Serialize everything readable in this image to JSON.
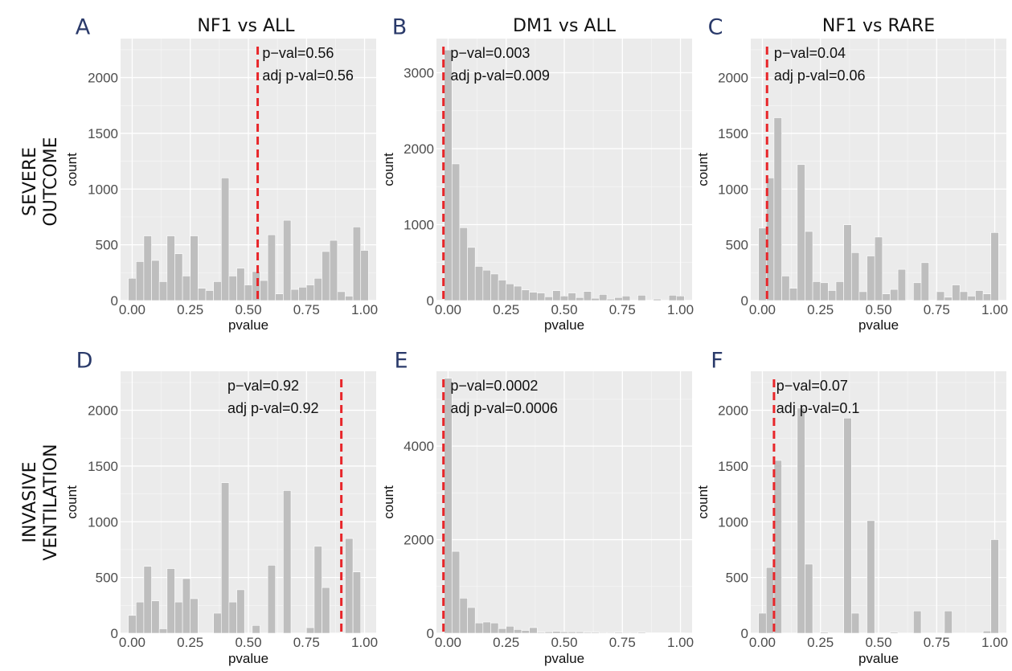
{
  "row_labels": [
    [
      "SEVERE",
      "OUTCOME"
    ],
    [
      "INVASIVE",
      "VENTILATION"
    ]
  ],
  "chart_data": [
    {
      "type": "bar",
      "panel": "A",
      "title": "NF1 vs ALL",
      "xlabel": "pvalue",
      "ylabel": "count",
      "xlim": [
        -0.05,
        1.05
      ],
      "ylim": [
        0,
        2350
      ],
      "xticks": [
        0,
        0.25,
        0.5,
        0.75,
        1
      ],
      "xticklabels": [
        "0.00",
        "0.25",
        "0.50",
        "0.75",
        "1.00"
      ],
      "yticks": [
        0,
        500,
        1000,
        1500,
        2000
      ],
      "bin_width": 0.0333,
      "x": [
        0,
        0.0333,
        0.0667,
        0.1,
        0.1333,
        0.1667,
        0.2,
        0.2333,
        0.2667,
        0.3,
        0.3333,
        0.3667,
        0.4,
        0.4333,
        0.4667,
        0.5,
        0.5333,
        0.5667,
        0.6,
        0.6333,
        0.6667,
        0.7,
        0.7333,
        0.7667,
        0.8,
        0.8333,
        0.8667,
        0.9,
        0.9333,
        0.9667,
        1
      ],
      "values": [
        200,
        350,
        580,
        360,
        170,
        580,
        420,
        220,
        580,
        110,
        90,
        170,
        1100,
        220,
        290,
        140,
        260,
        180,
        590,
        60,
        720,
        100,
        120,
        140,
        200,
        440,
        540,
        80,
        40,
        660,
        450
      ],
      "marker": {
        "x": 0.54
      },
      "annotations": [
        "p−val=0.56",
        "adj p-val=0.56"
      ],
      "anno_x": 0.56
    },
    {
      "type": "bar",
      "panel": "B",
      "title": "DM1 vs ALL",
      "xlabel": "pvalue",
      "ylabel": "count",
      "xlim": [
        -0.05,
        1.05
      ],
      "ylim": [
        0,
        3450
      ],
      "xticks": [
        0,
        0.25,
        0.5,
        0.75,
        1
      ],
      "xticklabels": [
        "0.00",
        "0.25",
        "0.50",
        "0.75",
        "1.00"
      ],
      "yticks": [
        0,
        1000,
        2000,
        3000
      ],
      "bin_width": 0.0333,
      "x": [
        0,
        0.0333,
        0.0667,
        0.1,
        0.1333,
        0.1667,
        0.2,
        0.2333,
        0.2667,
        0.3,
        0.3333,
        0.3667,
        0.4,
        0.4333,
        0.4667,
        0.5,
        0.5333,
        0.5667,
        0.6,
        0.6333,
        0.6667,
        0.7,
        0.7333,
        0.7667,
        0.8,
        0.8333,
        0.8667,
        0.9,
        0.9333,
        0.9667,
        1
      ],
      "values": [
        3300,
        1800,
        960,
        700,
        450,
        400,
        350,
        270,
        220,
        190,
        140,
        110,
        100,
        50,
        130,
        60,
        100,
        40,
        120,
        30,
        80,
        20,
        40,
        60,
        0,
        70,
        0,
        20,
        0,
        70,
        60
      ],
      "marker": {
        "x": -0.02
      },
      "annotations": [
        "p−val=0.003",
        "adj p-val=0.009"
      ],
      "anno_x": 0.01
    },
    {
      "type": "bar",
      "panel": "C",
      "title": "NF1 vs RARE",
      "xlabel": "pvalue",
      "ylabel": "count",
      "xlim": [
        -0.05,
        1.05
      ],
      "ylim": [
        0,
        2350
      ],
      "xticks": [
        0,
        0.25,
        0.5,
        0.75,
        1
      ],
      "xticklabels": [
        "0.00",
        "0.25",
        "0.50",
        "0.75",
        "1.00"
      ],
      "yticks": [
        0,
        500,
        1000,
        1500,
        2000
      ],
      "bin_width": 0.0333,
      "x": [
        0,
        0.0333,
        0.0667,
        0.1,
        0.1333,
        0.1667,
        0.2,
        0.2333,
        0.2667,
        0.3,
        0.3333,
        0.3667,
        0.4,
        0.4333,
        0.4667,
        0.5,
        0.5333,
        0.5667,
        0.6,
        0.6333,
        0.6667,
        0.7,
        0.7333,
        0.7667,
        0.8,
        0.8333,
        0.8667,
        0.9,
        0.9333,
        0.9667,
        1
      ],
      "values": [
        650,
        1100,
        1640,
        220,
        110,
        1220,
        620,
        170,
        160,
        90,
        170,
        680,
        430,
        80,
        400,
        570,
        60,
        100,
        280,
        0,
        160,
        340,
        0,
        80,
        30,
        140,
        80,
        40,
        90,
        60,
        610
      ],
      "marker": {
        "x": 0.02
      },
      "annotations": [
        "p−val=0.04",
        "adj p-val=0.06"
      ],
      "anno_x": 0.05
    },
    {
      "type": "bar",
      "panel": "D",
      "title": "",
      "xlabel": "pvalue",
      "ylabel": "count",
      "xlim": [
        -0.05,
        1.05
      ],
      "ylim": [
        0,
        2350
      ],
      "xticks": [
        0,
        0.25,
        0.5,
        0.75,
        1
      ],
      "xticklabels": [
        "0.00",
        "0.25",
        "0.50",
        "0.75",
        "1.00"
      ],
      "yticks": [
        0,
        500,
        1000,
        1500,
        2000
      ],
      "bin_width": 0.0333,
      "x": [
        0,
        0.0333,
        0.0667,
        0.1,
        0.1333,
        0.1667,
        0.2,
        0.2333,
        0.2667,
        0.3,
        0.3333,
        0.3667,
        0.4,
        0.4333,
        0.4667,
        0.5,
        0.5333,
        0.5667,
        0.6,
        0.6333,
        0.6667,
        0.7,
        0.7333,
        0.7667,
        0.8,
        0.8333,
        0.8667,
        0.9,
        0.9333,
        0.9667,
        1
      ],
      "values": [
        160,
        280,
        600,
        290,
        40,
        580,
        280,
        490,
        310,
        0,
        0,
        180,
        1350,
        280,
        390,
        0,
        70,
        0,
        610,
        0,
        1280,
        0,
        0,
        50,
        780,
        410,
        0,
        0,
        850,
        550,
        0
      ],
      "marker": {
        "x": 0.9
      },
      "annotations": [
        "p−val=0.92",
        "adj p-val=0.92"
      ],
      "anno_x": 0.41
    },
    {
      "type": "bar",
      "panel": "E",
      "title": "",
      "xlabel": "pvalue",
      "ylabel": "count",
      "xlim": [
        -0.05,
        1.05
      ],
      "ylim": [
        0,
        5600
      ],
      "xticks": [
        0,
        0.25,
        0.5,
        0.75,
        1
      ],
      "xticklabels": [
        "0.00",
        "0.25",
        "0.50",
        "0.75",
        "1.00"
      ],
      "yticks": [
        0,
        2000,
        4000
      ],
      "bin_width": 0.0333,
      "x": [
        0,
        0.0333,
        0.0667,
        0.1,
        0.1333,
        0.1667,
        0.2,
        0.2333,
        0.2667,
        0.3,
        0.3333,
        0.3667,
        0.4,
        0.4333,
        0.4667,
        0.5,
        0.5333,
        0.5667,
        0.6,
        0.6333,
        0.6667,
        0.7,
        0.7333,
        0.7667,
        0.8,
        0.8333,
        0.8667,
        0.9,
        0.9333,
        0.9667,
        1
      ],
      "values": [
        5450,
        1750,
        750,
        550,
        220,
        240,
        220,
        100,
        150,
        80,
        60,
        120,
        20,
        30,
        40,
        30,
        30,
        30,
        20,
        20,
        15,
        15,
        20,
        15,
        15,
        20,
        10,
        10,
        10,
        10,
        10
      ],
      "marker": {
        "x": -0.02
      },
      "annotations": [
        "p−val=0.0002",
        "adj p-val=0.0006"
      ],
      "anno_x": 0.01
    },
    {
      "type": "bar",
      "panel": "F",
      "title": "",
      "xlabel": "pvalue",
      "ylabel": "count",
      "xlim": [
        -0.05,
        1.05
      ],
      "ylim": [
        0,
        2350
      ],
      "xticks": [
        0,
        0.25,
        0.5,
        0.75,
        1
      ],
      "xticklabels": [
        "0.00",
        "0.25",
        "0.50",
        "0.75",
        "1.00"
      ],
      "yticks": [
        0,
        500,
        1000,
        1500,
        2000
      ],
      "bin_width": 0.0333,
      "x": [
        0,
        0.0333,
        0.0667,
        0.1,
        0.1333,
        0.1667,
        0.2,
        0.2333,
        0.2667,
        0.3,
        0.3333,
        0.3667,
        0.4,
        0.4333,
        0.4667,
        0.5,
        0.5333,
        0.5667,
        0.6,
        0.6333,
        0.6667,
        0.7,
        0.7333,
        0.7667,
        0.8,
        0.8333,
        0.8667,
        0.9,
        0.9333,
        0.9667,
        1
      ],
      "values": [
        180,
        590,
        1550,
        0,
        0,
        2020,
        620,
        0,
        10,
        0,
        0,
        1930,
        180,
        0,
        1010,
        0,
        0,
        10,
        0,
        0,
        200,
        0,
        0,
        0,
        200,
        0,
        0,
        0,
        0,
        20,
        840
      ],
      "marker": {
        "x": 0.05
      },
      "annotations": [
        "p−val=0.07",
        "adj p-val=0.1"
      ],
      "anno_x": 0.06
    }
  ]
}
